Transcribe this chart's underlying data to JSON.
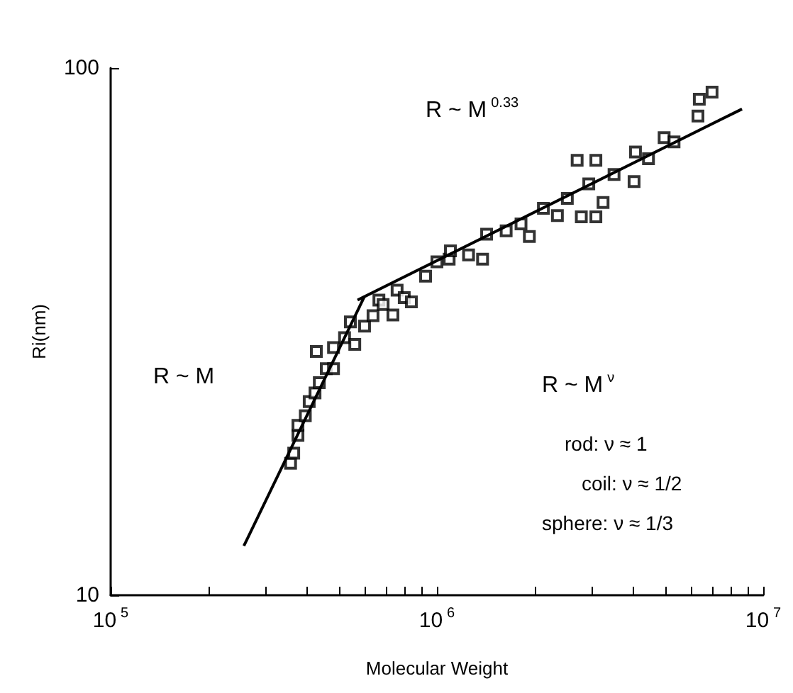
{
  "chart_data": {
    "type": "scatter",
    "xlabel": "Molecular Weight",
    "ylabel": "Ri(nm)",
    "log": "xy",
    "grid": false,
    "marker": "square",
    "xlim": [
      100000,
      10000000
    ],
    "ylim": [
      10,
      100
    ],
    "xticks": [
      {
        "value": 100000,
        "label": "10$^{5}$"
      },
      {
        "value": 200000,
        "label": null
      },
      {
        "value": 300000,
        "label": null
      },
      {
        "value": 400000,
        "label": null
      },
      {
        "value": 500000,
        "label": null
      },
      {
        "value": 600000,
        "label": null
      },
      {
        "value": 700000,
        "label": null
      },
      {
        "value": 800000,
        "label": null
      },
      {
        "value": 900000,
        "label": null
      },
      {
        "value": 1000000,
        "label": "10$^{6}$"
      },
      {
        "value": 2000000,
        "label": null
      },
      {
        "value": 3000000,
        "label": null
      },
      {
        "value": 4000000,
        "label": null
      },
      {
        "value": 5000000,
        "label": null
      },
      {
        "value": 6000000,
        "label": null
      },
      {
        "value": 7000000,
        "label": null
      },
      {
        "value": 8000000,
        "label": null
      },
      {
        "value": 9000000,
        "label": null
      },
      {
        "value": 10000000,
        "label": "10$^{7}$"
      }
    ],
    "yticks": [
      10,
      100
    ],
    "annotations": [
      "R ~ M$^{0.33}$",
      "R ~ M",
      "R ~ M$^{ν}$",
      "rod: ν ≈ 1",
      "coil: ν ≈ 1/2",
      "sphere: ν ≈ 1/3"
    ],
    "series": [
      {
        "color": "#000000",
        "x": [
          356000,
          364000,
          375000,
          375000,
          395000,
          406000,
          423000,
          436000,
          458000,
          482000,
          427000,
          482000,
          521000,
          560000,
          543000,
          600000,
          637000,
          664000,
          684000,
          733000,
          755000,
          794000,
          835000,
          923000,
          1000000,
          1090000,
          1100000,
          1250000,
          1380000,
          1420000,
          1630000,
          1810000,
          1920000,
          2120000,
          2340000,
          2510000,
          2770000,
          3070000,
          2920000,
          3230000,
          3490000,
          4020000,
          4060000,
          4450000,
          4970000,
          5330000,
          2690000,
          3070000,
          6310000,
          6370000,
          6970000
        ],
        "values": [
          17.8,
          18.6,
          20.1,
          21.0,
          21.9,
          23.3,
          24.2,
          25.3,
          26.9,
          26.9,
          29.0,
          29.5,
          30.8,
          29.9,
          33.0,
          32.4,
          33.9,
          36.3,
          35.6,
          34.0,
          37.9,
          36.7,
          36.0,
          40.3,
          42.9,
          43.4,
          45.0,
          44.2,
          43.4,
          48.4,
          49.1,
          50.6,
          47.9,
          54.2,
          52.5,
          56.6,
          52.2,
          52.2,
          60.3,
          55.6,
          62.8,
          60.9,
          69.3,
          67.3,
          73.8,
          72.4,
          66.8,
          66.8,
          81.1,
          87.3,
          90.0
        ]
      },
      {
        "type": "line",
        "color": "#000000",
        "marker": "none",
        "x": [
          256000,
          600000
        ],
        "values": [
          12.4,
          36.9
        ]
      },
      {
        "type": "line",
        "color": "#000000",
        "marker": "none",
        "x": [
          571000,
          8610000
        ],
        "values": [
          36.3,
          83.6
        ]
      }
    ]
  }
}
